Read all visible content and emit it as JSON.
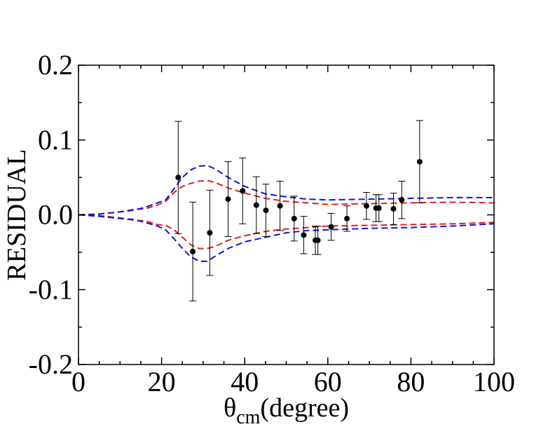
{
  "chart_data": {
    "type": "scatter",
    "xlabel": "θ",
    "xlabel_sub": "cm",
    "xlabel_rest": "(degree)",
    "ylabel": "RESIDUAL",
    "xlim": [
      0,
      100
    ],
    "ylim": [
      -0.2,
      0.2
    ],
    "x_ticks": [
      0,
      20,
      40,
      60,
      80,
      100
    ],
    "x_tick_labels": [
      "0",
      "20",
      "40",
      "60",
      "80",
      "100"
    ],
    "y_ticks": [
      -0.2,
      -0.1,
      0.0,
      0.1,
      0.2
    ],
    "y_tick_labels": [
      "-0.2",
      "-0.1",
      "0.0",
      "0.1",
      "0.2"
    ],
    "grid": false,
    "colors": {
      "points": "#000000",
      "red_band": "#e02020",
      "blue_band": "#1414d2"
    },
    "points": [
      {
        "x": 24.0,
        "y": 0.05,
        "err": 0.075
      },
      {
        "x": 27.5,
        "y": -0.049,
        "err": 0.066
      },
      {
        "x": 31.6,
        "y": -0.024,
        "err": 0.057
      },
      {
        "x": 36.0,
        "y": 0.021,
        "err": 0.05
      },
      {
        "x": 39.5,
        "y": 0.032,
        "err": 0.044
      },
      {
        "x": 42.8,
        "y": 0.013,
        "err": 0.038
      },
      {
        "x": 45.1,
        "y": 0.006,
        "err": 0.035
      },
      {
        "x": 48.5,
        "y": 0.012,
        "err": 0.033
      },
      {
        "x": 51.9,
        "y": -0.005,
        "err": 0.03
      },
      {
        "x": 54.2,
        "y": -0.027,
        "err": 0.025
      },
      {
        "x": 57.0,
        "y": -0.034,
        "err": 0.019
      },
      {
        "x": 57.6,
        "y": -0.034,
        "err": 0.019
      },
      {
        "x": 60.8,
        "y": -0.016,
        "err": 0.018
      },
      {
        "x": 64.6,
        "y": -0.005,
        "err": 0.017
      },
      {
        "x": 69.3,
        "y": 0.012,
        "err": 0.018
      },
      {
        "x": 71.6,
        "y": 0.009,
        "err": 0.018
      },
      {
        "x": 72.3,
        "y": 0.009,
        "err": 0.018
      },
      {
        "x": 75.8,
        "y": 0.008,
        "err": 0.021
      },
      {
        "x": 77.8,
        "y": 0.02,
        "err": 0.025
      },
      {
        "x": 82.1,
        "y": 0.071,
        "err": 0.055
      }
    ],
    "bands": [
      {
        "color": "red",
        "upper": [
          [
            0,
            0
          ],
          [
            5,
            0.001
          ],
          [
            10,
            0.004
          ],
          [
            13,
            0.007
          ],
          [
            16,
            0.008
          ],
          [
            19,
            0.013
          ],
          [
            21,
            0.018
          ],
          [
            23,
            0.03
          ],
          [
            25,
            0.038
          ],
          [
            27,
            0.042
          ],
          [
            29,
            0.045
          ],
          [
            31,
            0.046
          ],
          [
            33,
            0.043
          ],
          [
            36,
            0.036
          ],
          [
            40,
            0.029
          ],
          [
            45,
            0.022
          ],
          [
            50,
            0.018
          ],
          [
            55,
            0.016
          ],
          [
            60,
            0.014
          ],
          [
            70,
            0.015
          ],
          [
            80,
            0.016
          ],
          [
            90,
            0.017
          ],
          [
            100,
            0.016
          ]
        ],
        "lower": [
          [
            0,
            0
          ],
          [
            5,
            -0.001
          ],
          [
            10,
            -0.004
          ],
          [
            13,
            -0.007
          ],
          [
            16,
            -0.008
          ],
          [
            19,
            -0.013
          ],
          [
            21,
            -0.014
          ],
          [
            23,
            -0.02
          ],
          [
            25,
            -0.03
          ],
          [
            27,
            -0.04
          ],
          [
            29,
            -0.045
          ],
          [
            31,
            -0.045
          ],
          [
            33,
            -0.042
          ],
          [
            36,
            -0.034
          ],
          [
            40,
            -0.028
          ],
          [
            45,
            -0.022
          ],
          [
            50,
            -0.019
          ],
          [
            55,
            -0.017
          ],
          [
            60,
            -0.015
          ],
          [
            70,
            -0.014
          ],
          [
            80,
            -0.013
          ],
          [
            90,
            -0.012
          ],
          [
            100,
            -0.01
          ]
        ]
      },
      {
        "color": "blue",
        "upper": [
          [
            0,
            0
          ],
          [
            5,
            0.001
          ],
          [
            10,
            0.004
          ],
          [
            13,
            0.006
          ],
          [
            16,
            0.01
          ],
          [
            19,
            0.016
          ],
          [
            21,
            0.02
          ],
          [
            23,
            0.035
          ],
          [
            25,
            0.05
          ],
          [
            27,
            0.06
          ],
          [
            29,
            0.065
          ],
          [
            31,
            0.066
          ],
          [
            33,
            0.061
          ],
          [
            36,
            0.05
          ],
          [
            40,
            0.038
          ],
          [
            45,
            0.028
          ],
          [
            50,
            0.024
          ],
          [
            55,
            0.021
          ],
          [
            60,
            0.02
          ],
          [
            70,
            0.021
          ],
          [
            80,
            0.022
          ],
          [
            90,
            0.023
          ],
          [
            100,
            0.023
          ]
        ],
        "lower": [
          [
            0,
            0
          ],
          [
            5,
            -0.002
          ],
          [
            10,
            -0.005
          ],
          [
            13,
            -0.006
          ],
          [
            16,
            -0.01
          ],
          [
            19,
            -0.015
          ],
          [
            21,
            -0.02
          ],
          [
            23,
            -0.032
          ],
          [
            25,
            -0.045
          ],
          [
            27,
            -0.056
          ],
          [
            29,
            -0.062
          ],
          [
            31,
            -0.062
          ],
          [
            33,
            -0.055
          ],
          [
            36,
            -0.045
          ],
          [
            40,
            -0.036
          ],
          [
            45,
            -0.03
          ],
          [
            50,
            -0.024
          ],
          [
            55,
            -0.021
          ],
          [
            60,
            -0.02
          ],
          [
            70,
            -0.018
          ],
          [
            80,
            -0.017
          ],
          [
            90,
            -0.015
          ],
          [
            100,
            -0.012
          ]
        ]
      }
    ]
  }
}
